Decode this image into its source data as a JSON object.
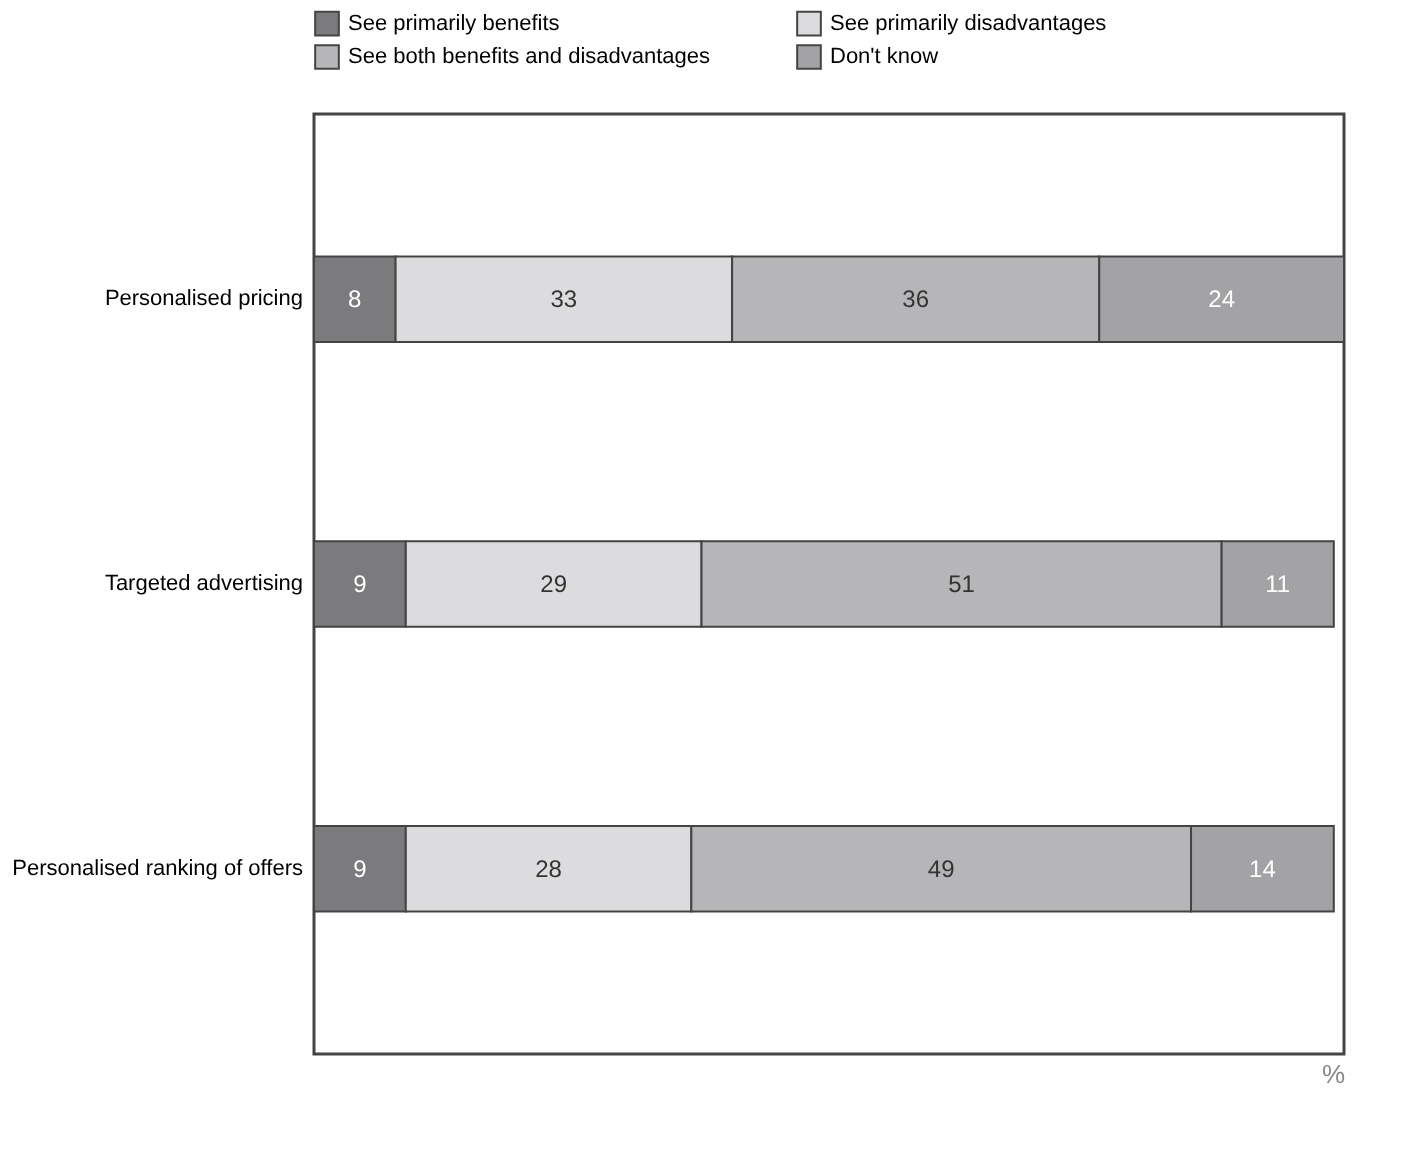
{
  "chart_data": {
    "type": "bar",
    "orientation": "horizontal",
    "stacked": true,
    "xlabel": "%",
    "categories": [
      "Personalised pricing",
      "Targeted advertising",
      "Personalised ranking of offers"
    ],
    "series": [
      {
        "name": "See primarily benefits",
        "color": "#7b7b7e",
        "values": [
          8,
          9,
          9
        ]
      },
      {
        "name": "See primarily disadvantages",
        "color": "#dcdcde",
        "values": [
          33,
          29,
          28
        ]
      },
      {
        "name": "See both benefits and disadvantages",
        "color": "#b6b6b9",
        "values": [
          36,
          51,
          49
        ]
      },
      {
        "name": "Don't know",
        "color": "#a3a3a6",
        "values": [
          24,
          11,
          14
        ]
      }
    ],
    "xlim": [
      0,
      101
    ],
    "data_labels": true,
    "legend": "top",
    "tick_labels": "y"
  }
}
